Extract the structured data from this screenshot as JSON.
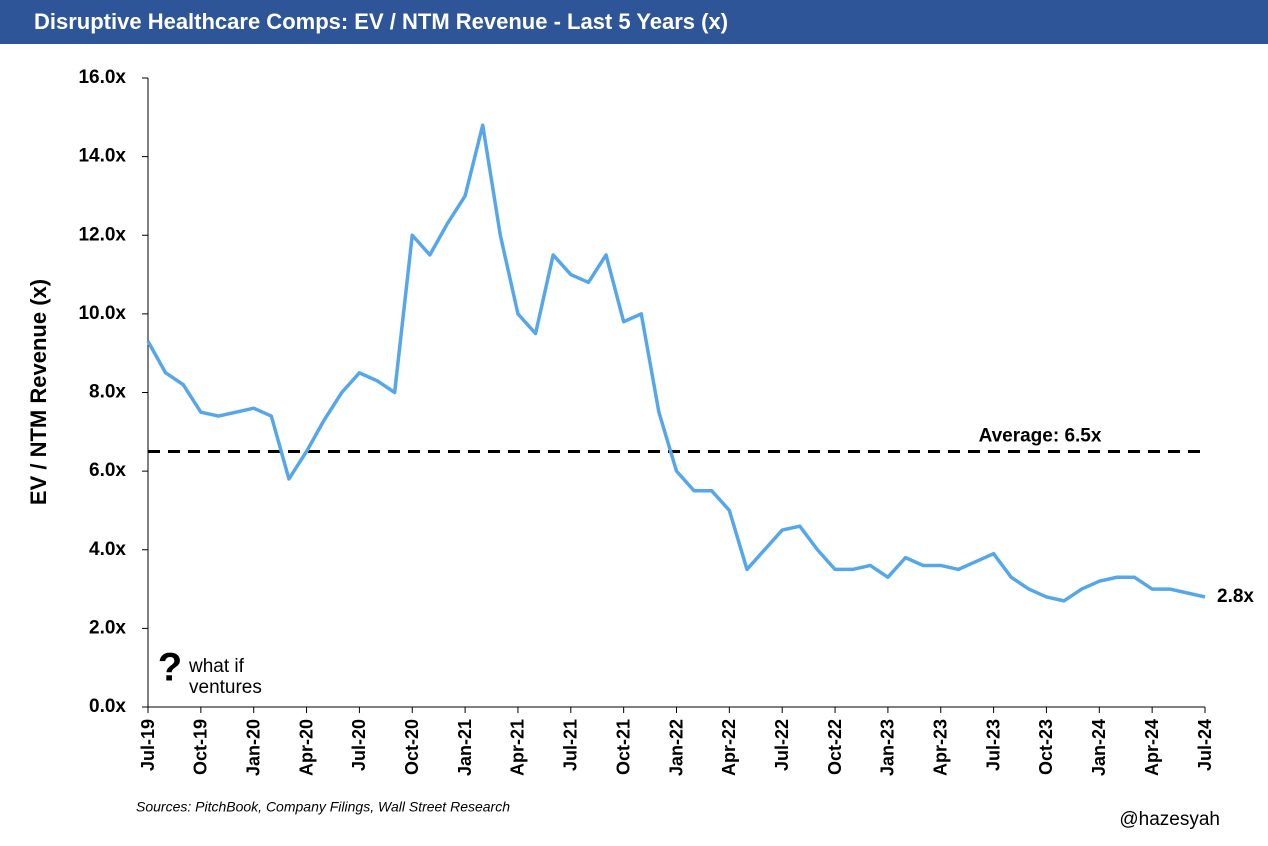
{
  "chart_data": {
    "type": "line",
    "title": "Disruptive Healthcare Comps: EV / NTM Revenue - Last 5 Years (x)",
    "y_label": "EV / NTM Revenue (x)",
    "x": [
      "2019-07",
      "2019-08",
      "2019-09",
      "2019-10",
      "2019-11",
      "2019-12",
      "2020-01",
      "2020-02",
      "2020-03",
      "2020-04",
      "2020-05",
      "2020-06",
      "2020-07",
      "2020-08",
      "2020-09",
      "2020-10",
      "2020-11",
      "2020-12",
      "2021-01",
      "2021-02",
      "2021-03",
      "2021-04",
      "2021-05",
      "2021-06",
      "2021-07",
      "2021-08",
      "2021-09",
      "2021-10",
      "2021-11",
      "2021-12",
      "2022-01",
      "2022-02",
      "2022-03",
      "2022-04",
      "2022-05",
      "2022-06",
      "2022-07",
      "2022-08",
      "2022-09",
      "2022-10",
      "2022-11",
      "2022-12",
      "2023-01",
      "2023-02",
      "2023-03",
      "2023-04",
      "2023-05",
      "2023-06",
      "2023-07",
      "2023-08",
      "2023-09",
      "2023-10",
      "2023-11",
      "2023-12",
      "2024-01",
      "2024-02",
      "2024-03",
      "2024-04",
      "2024-05",
      "2024-06",
      "2024-07"
    ],
    "series": [
      {
        "name": "EV / NTM Revenue",
        "color": "#56a7ea",
        "values": [
          9.3,
          8.5,
          8.2,
          7.5,
          7.4,
          7.5,
          7.6,
          7.4,
          5.8,
          6.5,
          7.3,
          8.0,
          8.5,
          8.3,
          8.0,
          12.0,
          11.5,
          12.3,
          13.0,
          14.8,
          12.0,
          10.0,
          9.5,
          11.5,
          11.0,
          10.8,
          11.5,
          9.8,
          10.0,
          7.5,
          6.0,
          5.5,
          5.5,
          5.0,
          3.5,
          4.0,
          4.5,
          4.6,
          4.0,
          3.5,
          3.5,
          3.6,
          3.3,
          3.8,
          3.6,
          3.6,
          3.5,
          3.7,
          3.9,
          3.3,
          3.0,
          2.8,
          2.7,
          3.0,
          3.2,
          3.3,
          3.3,
          3.0,
          3.0,
          2.9,
          2.8
        ]
      }
    ],
    "end_label": "2.8x",
    "average": {
      "value": 6.5,
      "label": "Average: 6.5x"
    },
    "xlim": [
      "2019-07",
      "2024-07"
    ],
    "xticks": [
      {
        "value": "2019-07",
        "label": "Jul-19"
      },
      {
        "value": "2019-10",
        "label": "Oct-19"
      },
      {
        "value": "2020-01",
        "label": "Jan-20"
      },
      {
        "value": "2020-04",
        "label": "Apr-20"
      },
      {
        "value": "2020-07",
        "label": "Jul-20"
      },
      {
        "value": "2020-10",
        "label": "Oct-20"
      },
      {
        "value": "2021-01",
        "label": "Jan-21"
      },
      {
        "value": "2021-04",
        "label": "Apr-21"
      },
      {
        "value": "2021-07",
        "label": "Jul-21"
      },
      {
        "value": "2021-10",
        "label": "Oct-21"
      },
      {
        "value": "2022-01",
        "label": "Jan-22"
      },
      {
        "value": "2022-04",
        "label": "Apr-22"
      },
      {
        "value": "2022-07",
        "label": "Jul-22"
      },
      {
        "value": "2022-10",
        "label": "Oct-22"
      },
      {
        "value": "2023-01",
        "label": "Jan-23"
      },
      {
        "value": "2023-04",
        "label": "Apr-23"
      },
      {
        "value": "2023-07",
        "label": "Jul-23"
      },
      {
        "value": "2023-10",
        "label": "Oct-23"
      },
      {
        "value": "2024-01",
        "label": "Jan-24"
      },
      {
        "value": "2024-04",
        "label": "Apr-24"
      },
      {
        "value": "2024-07",
        "label": "Jul-24"
      }
    ],
    "ylim": [
      0,
      16
    ],
    "yticks": [
      {
        "value": 0,
        "label": "0.0x"
      },
      {
        "value": 2,
        "label": "2.0x"
      },
      {
        "value": 4,
        "label": "4.0x"
      },
      {
        "value": 6,
        "label": "6.0x"
      },
      {
        "value": 8,
        "label": "8.0x"
      },
      {
        "value": 10,
        "label": "10.0x"
      },
      {
        "value": 12,
        "label": "12.0x"
      },
      {
        "value": 14,
        "label": "14.0x"
      },
      {
        "value": 16,
        "label": "16.0x"
      }
    ],
    "grid": false,
    "logo": {
      "mark": "?",
      "line1": "what if",
      "line2": "ventures"
    },
    "source": "Sources: PitchBook, Company Filings, Wall Street Research",
    "handle": "@hazesyah"
  }
}
